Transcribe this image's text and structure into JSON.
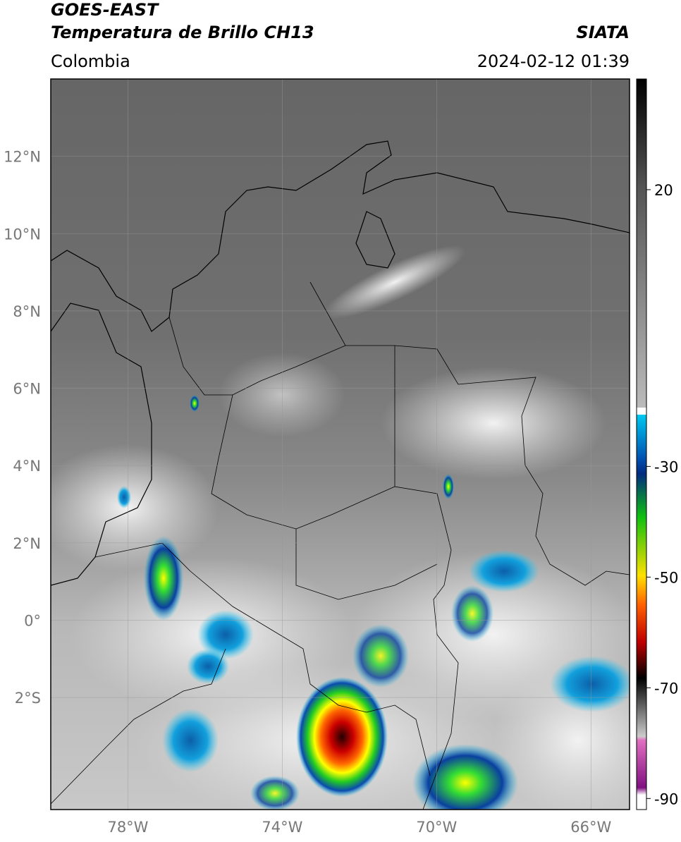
{
  "header": {
    "title_line1": "GOES-EAST",
    "title_line2": "Temperatura de Brillo CH13",
    "agency": "SIATA",
    "region": "Colombia",
    "timestamp": "2024-02-12 01:39"
  },
  "map": {
    "lon_lim": [
      -80,
      -65
    ],
    "lat_lim": [
      -4.9,
      14
    ],
    "lat_ticks": [
      {
        "value": 12,
        "label": "12°N"
      },
      {
        "value": 10,
        "label": "10°N"
      },
      {
        "value": 8,
        "label": "8°N"
      },
      {
        "value": 6,
        "label": "6°N"
      },
      {
        "value": 4,
        "label": "4°N"
      },
      {
        "value": 2,
        "label": "2°N"
      },
      {
        "value": 0,
        "label": "0°"
      },
      {
        "value": -2,
        "label": "2°S"
      }
    ],
    "lon_ticks": [
      {
        "value": -78,
        "label": "78°W"
      },
      {
        "value": -74,
        "label": "74°W"
      },
      {
        "value": -70,
        "label": "70°W"
      },
      {
        "value": -66,
        "label": "66°W"
      }
    ],
    "grid": true
  },
  "colorbar": {
    "lim": [
      -92,
      40
    ],
    "ticks": [
      20,
      -30,
      -50,
      -70,
      -90
    ]
  }
}
